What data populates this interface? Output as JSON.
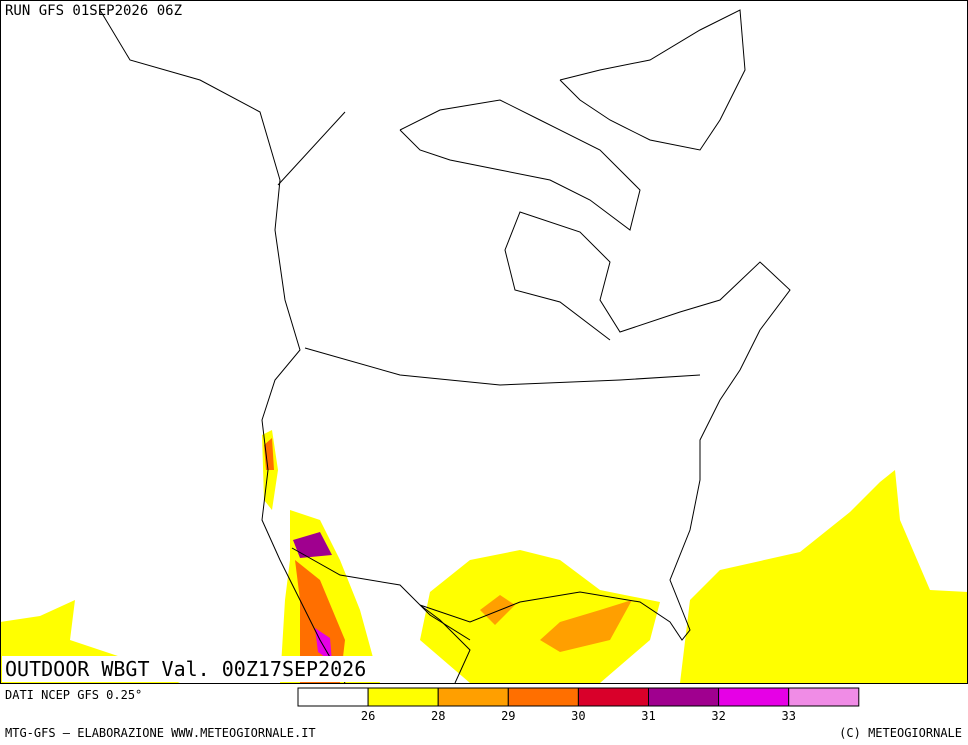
{
  "header": {
    "run": "RUN GFS 01SEP2026 06Z"
  },
  "map": {
    "title": "OUTDOOR WBGT Val. 00Z17SEP2026"
  },
  "legend": {
    "source": "DATI NCEP GFS 0.25°",
    "colors": [
      "#ffffff",
      "#ffff00",
      "#ff9f00",
      "#ff6f00",
      "#d9002a",
      "#a0008f",
      "#e600e6",
      "#f08ce6"
    ],
    "thresholds": [
      26,
      28,
      29,
      30,
      31,
      32,
      33
    ]
  },
  "footer": {
    "left": "MTG-GFS — ELABORAZIONE WWW.METEOGIORNALE.IT",
    "right": "(C) METEOGIORNALE"
  }
}
